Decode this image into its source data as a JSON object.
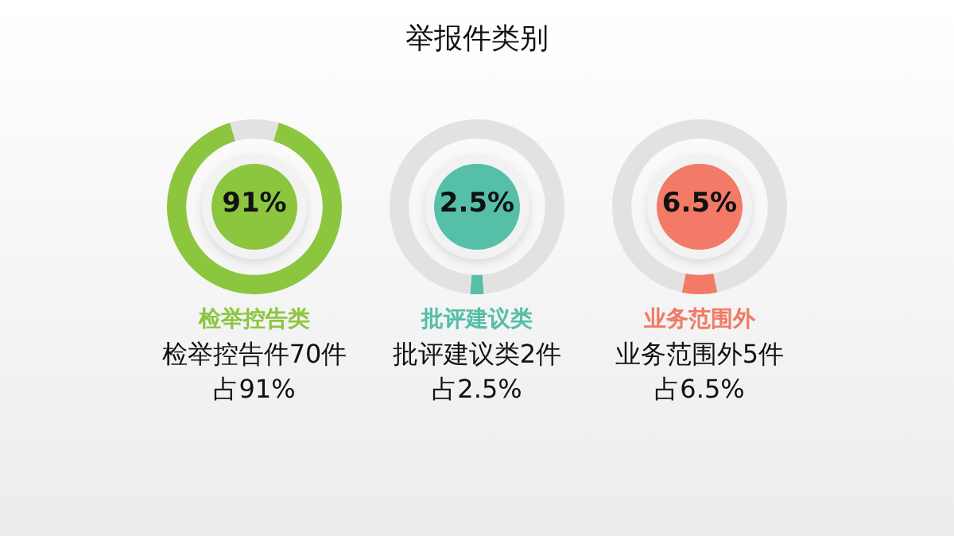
{
  "chart_data": [
    {
      "type": "donut",
      "categories": [
        "检举控告类",
        null
      ],
      "values": [
        91,
        9
      ],
      "colors": [
        "#8cc63f",
        "#e2e2e2"
      ],
      "annotations": [
        "91%",
        "检举控告件70件",
        "占91%"
      ]
    },
    {
      "type": "donut",
      "title": "举报件类别",
      "categories": [
        "批评建议类",
        null
      ],
      "values": [
        2.5,
        97.5
      ],
      "colors": [
        "#55bfa8",
        "#e2e2e2"
      ],
      "annotations": [
        "2.5%",
        "批评建议类2件",
        "占2.5%"
      ]
    },
    {
      "type": "donut",
      "categories": [
        "业务范围外",
        null
      ],
      "values": [
        6.5,
        93.5
      ],
      "colors": [
        "#f27a66",
        "#e2e2e2"
      ],
      "annotations": [
        "6.5%",
        "业务范围外5件",
        "占6.5%"
      ]
    }
  ]
}
